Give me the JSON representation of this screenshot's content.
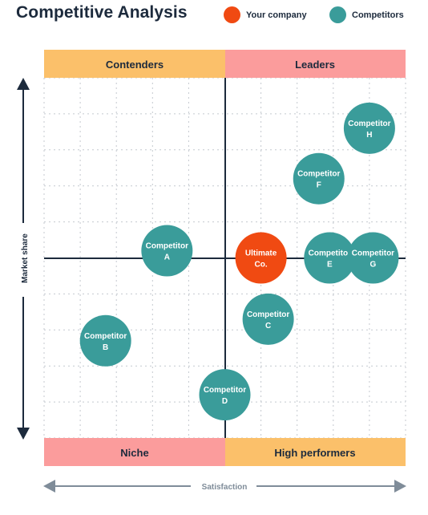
{
  "title": "Competitive Analysis",
  "legend": [
    {
      "label": "Your company",
      "color": "#f04a12"
    },
    {
      "label": "Competitors",
      "color": "#3a9c9a"
    }
  ],
  "chart_data": {
    "type": "scatter",
    "xlabel": "Satisfaction",
    "ylabel": "Market share",
    "quadrants": {
      "top_left": {
        "label": "Contenders",
        "color": "#fbc06a"
      },
      "top_right": {
        "label": "Leaders",
        "color": "#fb9c9c"
      },
      "bottom_left": {
        "label": "Niche",
        "color": "#fb9c9c"
      },
      "bottom_right": {
        "label": "High performers",
        "color": "#fbc06a"
      }
    },
    "grid": true,
    "points": [
      {
        "line1": "Competitor",
        "line2": "A",
        "x": 3.4,
        "y": 5.2,
        "group": "competitor"
      },
      {
        "line1": "Competitor",
        "line2": "B",
        "x": 1.7,
        "y": 2.7,
        "group": "competitor"
      },
      {
        "line1": "Competitor",
        "line2": "C",
        "x": 6.2,
        "y": 3.3,
        "group": "competitor"
      },
      {
        "line1": "Competitor",
        "line2": "D",
        "x": 5.0,
        "y": 1.2,
        "group": "competitor"
      },
      {
        "line1": "Competitor",
        "line2": "E",
        "x": 7.9,
        "y": 5.0,
        "group": "competitor"
      },
      {
        "line1": "Competitor",
        "line2": "F",
        "x": 7.6,
        "y": 7.2,
        "group": "competitor"
      },
      {
        "line1": "Competitor",
        "line2": "G",
        "x": 9.1,
        "y": 5.0,
        "group": "competitor"
      },
      {
        "line1": "Competitor",
        "line2": "H",
        "x": 9.0,
        "y": 8.6,
        "group": "competitor"
      },
      {
        "line1": "Ultimate",
        "line2": "Co.",
        "x": 6.0,
        "y": 5.0,
        "group": "company"
      }
    ]
  }
}
